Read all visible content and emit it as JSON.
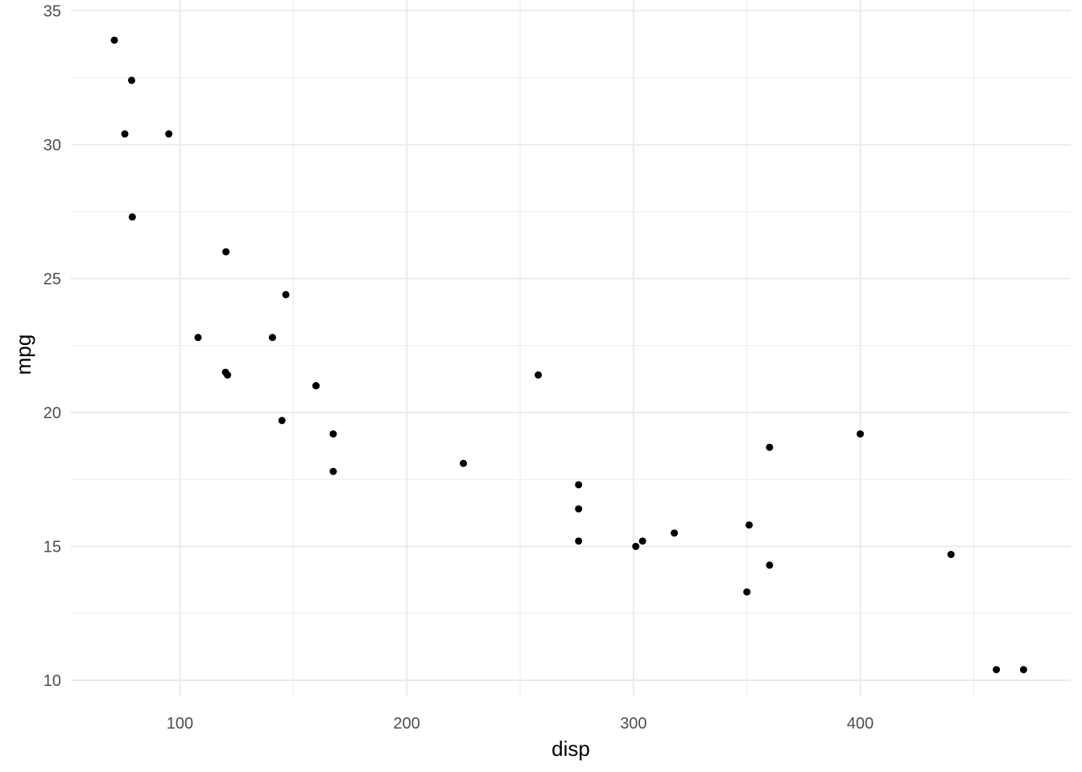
{
  "chart_data": {
    "type": "scatter",
    "title": "",
    "xlabel": "disp",
    "ylabel": "mpg",
    "xlim": [
      51.9,
      492.8
    ],
    "ylim": [
      9.4,
      35.4
    ],
    "x_ticks": [
      100,
      200,
      300,
      400
    ],
    "y_ticks": [
      10,
      15,
      20,
      25,
      30,
      35
    ],
    "x_tick_labels": [
      "100",
      "200",
      "300",
      "400"
    ],
    "y_tick_labels": [
      "10",
      "15",
      "20",
      "25",
      "30",
      "35"
    ],
    "grid": true,
    "legend": "none",
    "point_color": "#000000",
    "grid_color": "#ebebeb",
    "points": [
      {
        "x": 160,
        "y": 21.0
      },
      {
        "x": 160,
        "y": 21.0
      },
      {
        "x": 108,
        "y": 22.8
      },
      {
        "x": 258,
        "y": 21.4
      },
      {
        "x": 360,
        "y": 18.7
      },
      {
        "x": 225,
        "y": 18.1
      },
      {
        "x": 360,
        "y": 14.3
      },
      {
        "x": 146.7,
        "y": 24.4
      },
      {
        "x": 140.8,
        "y": 22.8
      },
      {
        "x": 167.6,
        "y": 19.2
      },
      {
        "x": 167.6,
        "y": 17.8
      },
      {
        "x": 275.8,
        "y": 16.4
      },
      {
        "x": 275.8,
        "y": 17.3
      },
      {
        "x": 275.8,
        "y": 15.2
      },
      {
        "x": 472,
        "y": 10.4
      },
      {
        "x": 460,
        "y": 10.4
      },
      {
        "x": 440,
        "y": 14.7
      },
      {
        "x": 78.7,
        "y": 32.4
      },
      {
        "x": 75.7,
        "y": 30.4
      },
      {
        "x": 71.1,
        "y": 33.9
      },
      {
        "x": 120.1,
        "y": 21.5
      },
      {
        "x": 318,
        "y": 15.5
      },
      {
        "x": 304,
        "y": 15.2
      },
      {
        "x": 350,
        "y": 13.3
      },
      {
        "x": 400,
        "y": 19.2
      },
      {
        "x": 79,
        "y": 27.3
      },
      {
        "x": 120.3,
        "y": 26.0
      },
      {
        "x": 95.1,
        "y": 30.4
      },
      {
        "x": 351,
        "y": 15.8
      },
      {
        "x": 145,
        "y": 19.7
      },
      {
        "x": 301,
        "y": 15.0
      },
      {
        "x": 121,
        "y": 21.4
      }
    ]
  }
}
